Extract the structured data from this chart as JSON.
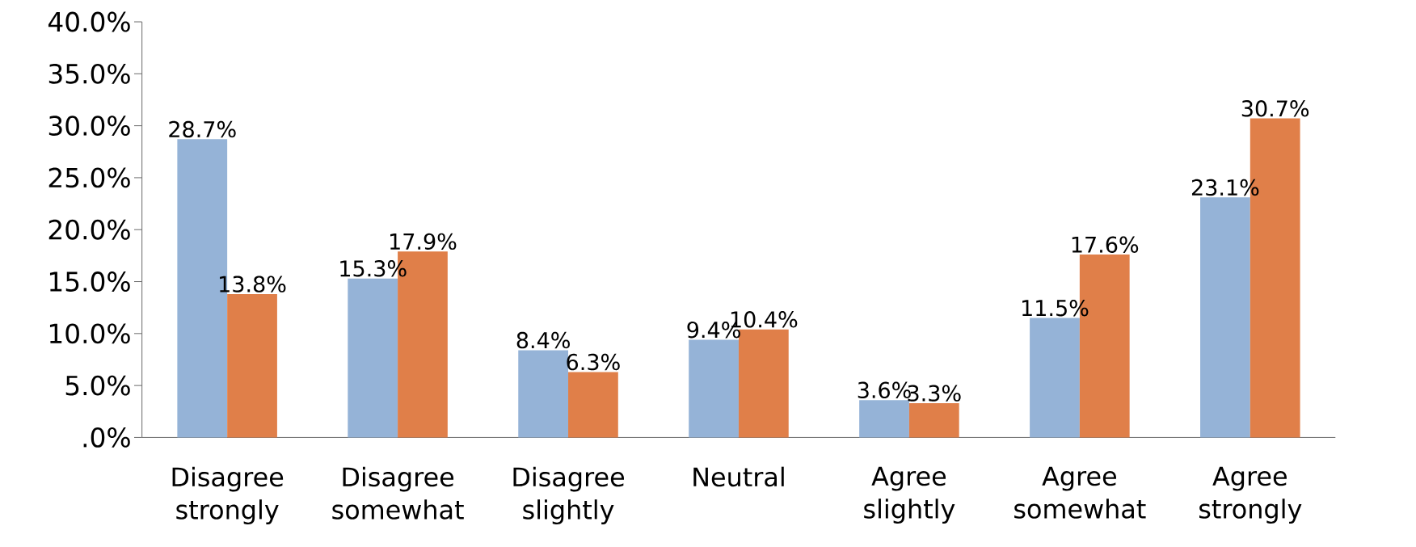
{
  "chart_data": {
    "type": "bar",
    "categories": [
      "Disagree strongly",
      "Disagree somewhat",
      "Disagree slightly",
      "Neutral",
      "Agree slightly",
      "Agree somewhat",
      "Agree strongly"
    ],
    "series": [
      {
        "color": "#95b3d7",
        "values": [
          28.7,
          15.3,
          8.4,
          9.4,
          3.6,
          11.5,
          23.1
        ],
        "value_labels": [
          "28.7%",
          "15.3%",
          "8.4%",
          "9.4%",
          "3.6%",
          "11.5%",
          "23.1%"
        ]
      },
      {
        "color": "#e07f49",
        "values": [
          13.8,
          17.9,
          6.3,
          10.4,
          3.3,
          17.6,
          30.7
        ],
        "value_labels": [
          "13.8%",
          "17.9%",
          "6.3%",
          "10.4%",
          "3.3%",
          "17.6%",
          "30.7%"
        ]
      }
    ],
    "ylim": [
      0,
      40
    ],
    "yticks": [
      {
        "value": 0,
        "label": ".0%"
      },
      {
        "value": 5,
        "label": "5.0%"
      },
      {
        "value": 10,
        "label": "10.0%"
      },
      {
        "value": 15,
        "label": "15.0%"
      },
      {
        "value": 20,
        "label": "20.0%"
      },
      {
        "value": 25,
        "label": "25.0%"
      },
      {
        "value": 30,
        "label": "30.0%"
      },
      {
        "value": 35,
        "label": "35.0%"
      },
      {
        "value": 40,
        "label": "40.0%"
      }
    ],
    "grid": false
  }
}
